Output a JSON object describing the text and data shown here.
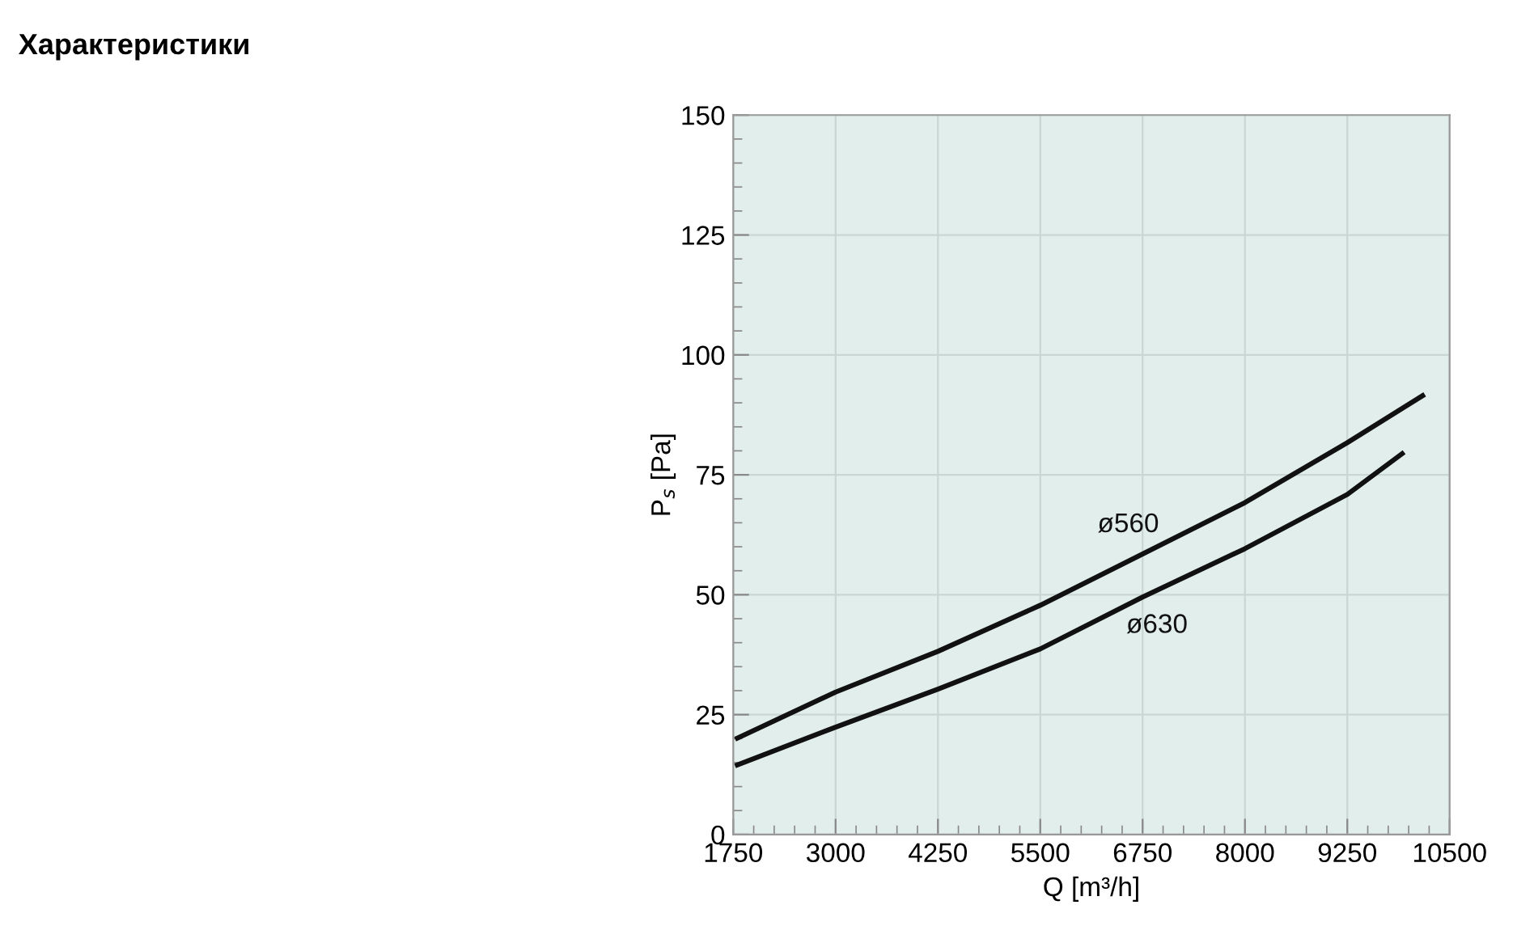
{
  "chart_data": {
    "type": "line",
    "title": "Характеристики",
    "xlabel": "Q [m³/h]",
    "ylabel": "P$_{s}$ [Pa]",
    "series": [
      {
        "name": "ø560",
        "color": "#111111",
        "x": [
          1800,
          3000,
          4250,
          5500,
          6750,
          8000,
          9250,
          10170
        ],
        "values": [
          20.1,
          29.7,
          38.2,
          47.8,
          58.5,
          69.2,
          81.7,
          91.5
        ]
      },
      {
        "name": "ø630",
        "color": "#111111",
        "x": [
          1800,
          3000,
          4250,
          5500,
          6750,
          8000,
          9250,
          9920
        ],
        "values": [
          14.5,
          22.4,
          30.3,
          38.7,
          49.5,
          59.6,
          70.9,
          79.4
        ]
      }
    ],
    "xlim": [
      1750,
      10500
    ],
    "xticks": [
      1750,
      3000,
      4250,
      5500,
      6750,
      8000,
      9250,
      10500
    ],
    "ylim": [
      0,
      150
    ],
    "yticks": [
      0,
      25,
      50,
      75,
      100,
      125,
      150
    ],
    "grid": true,
    "marker": "none",
    "line_style": "solid",
    "legend": false
  }
}
